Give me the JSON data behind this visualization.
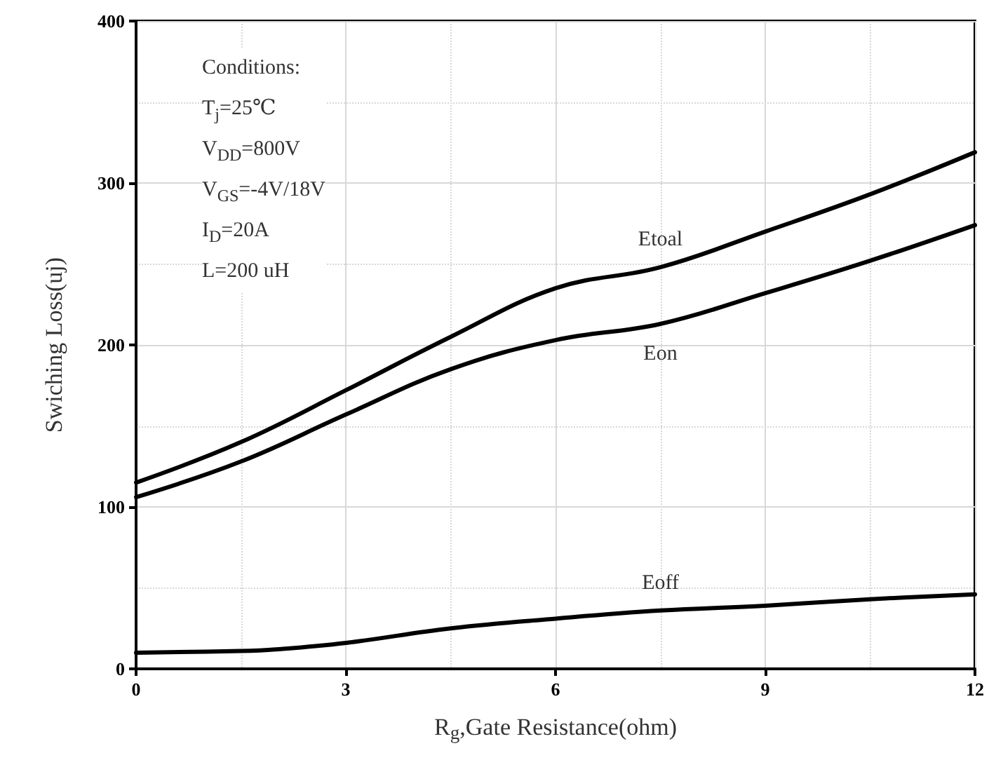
{
  "chart_data": {
    "type": "line",
    "xlabel": "R$_{g}$,Gate Resistance(ohm)",
    "ylabel": "Swiching Loss(uj)",
    "xlim": [
      0,
      12
    ],
    "xticks": [
      0,
      3,
      6,
      9,
      12
    ],
    "ylim": [
      0,
      400
    ],
    "yticks": [
      0,
      100,
      200,
      300,
      400
    ],
    "grid": true,
    "marker": "none",
    "line_style": "solid",
    "series": [
      {
        "name": "Etoal",
        "color": "#000000",
        "x": [
          0,
          1.5,
          3,
          4.5,
          6,
          7.5,
          9,
          10.5,
          12
        ],
        "values": [
          115,
          140,
          172,
          205,
          235,
          248,
          270,
          293,
          319
        ]
      },
      {
        "name": "Eon",
        "color": "#000000",
        "x": [
          0,
          1.5,
          3,
          4.5,
          6,
          7.5,
          9,
          10.5,
          12
        ],
        "values": [
          106,
          128,
          157,
          185,
          203,
          213,
          232,
          252,
          274
        ]
      },
      {
        "name": "Eoff",
        "color": "#000000",
        "x": [
          0,
          1.5,
          2,
          3,
          4.5,
          6,
          7.5,
          9,
          10.5,
          12
        ],
        "values": [
          10,
          11,
          12,
          16,
          25,
          31,
          36,
          39,
          43,
          46
        ]
      }
    ],
    "annotations": [
      "Conditions:",
      "T$_{j}$=25℃",
      "V$_{DD}$=800V",
      "V$_{GS}$=-4V/18V",
      "I$_{D}$=20A",
      "L=200 uH"
    ]
  }
}
